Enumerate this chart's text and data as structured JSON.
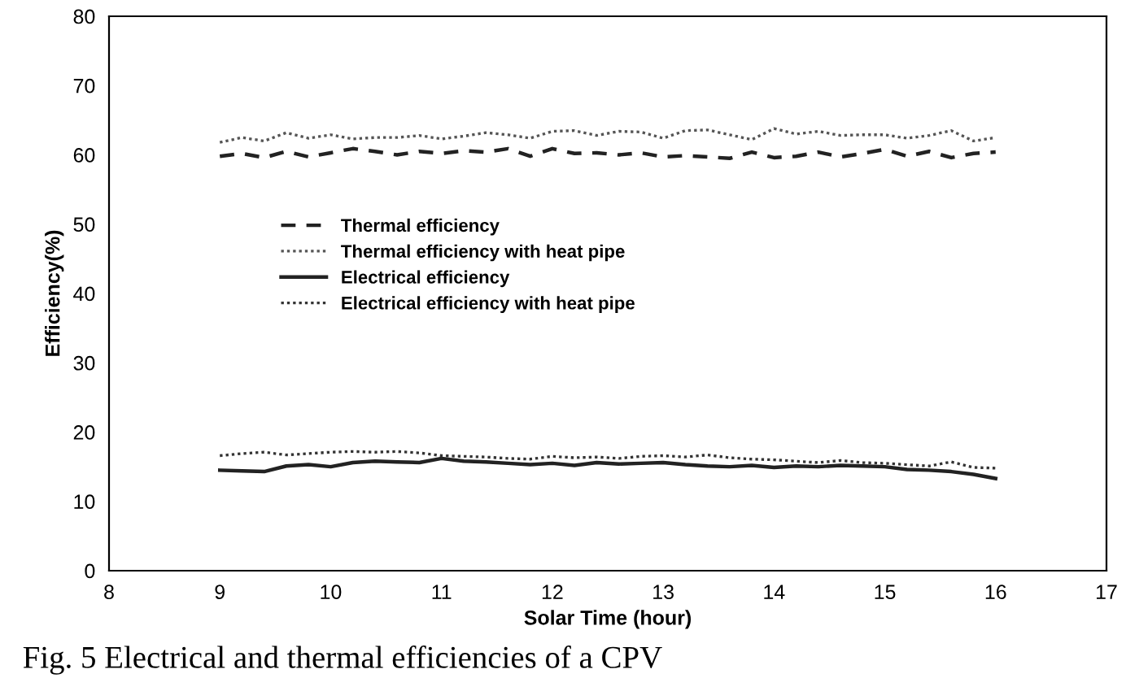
{
  "chart_data": {
    "type": "line",
    "xlabel": "Solar Time (hour)",
    "ylabel": "Efficiency(%)",
    "annotations": [
      "Fig. 5 Electrical and thermal efficiencies of a CPV"
    ],
    "x": [
      9,
      9.2,
      9.4,
      9.6,
      9.8,
      10,
      10.2,
      10.4,
      10.6,
      10.8,
      11,
      11.2,
      11.4,
      11.6,
      11.8,
      12,
      12.2,
      12.4,
      12.6,
      12.8,
      13,
      13.2,
      13.4,
      13.6,
      13.8,
      14,
      14.2,
      14.4,
      14.6,
      14.8,
      15,
      15.2,
      15.4,
      15.6,
      15.8,
      16
    ],
    "xlim": [
      8,
      17
    ],
    "xticks": [
      8,
      9,
      10,
      11,
      12,
      13,
      14,
      15,
      16,
      17
    ],
    "ylim": [
      0,
      80
    ],
    "yticks": [
      0,
      10,
      20,
      30,
      40,
      50,
      60,
      70,
      80
    ],
    "grid": false,
    "legend": "center",
    "series": [
      {
        "name": "Thermal efficiency",
        "color": "#222222",
        "line_style": "dashed",
        "values": [
          59.8,
          60.2,
          59.6,
          60.5,
          59.7,
          60.3,
          60.9,
          60.5,
          60.0,
          60.5,
          60.2,
          60.6,
          60.4,
          60.9,
          59.8,
          60.9,
          60.2,
          60.3,
          60.0,
          60.3,
          59.7,
          59.9,
          59.7,
          59.5,
          60.4,
          59.6,
          59.8,
          60.4,
          59.7,
          60.2,
          60.8,
          59.8,
          60.5,
          59.6,
          60.2,
          60.4
        ]
      },
      {
        "name": "Thermal efficiency with heat pipe",
        "color": "#555555",
        "line_style": "dotted",
        "values": [
          61.8,
          62.5,
          62.0,
          63.2,
          62.4,
          62.9,
          62.3,
          62.5,
          62.5,
          62.8,
          62.3,
          62.7,
          63.2,
          62.9,
          62.4,
          63.4,
          63.5,
          62.8,
          63.4,
          63.3,
          62.4,
          63.5,
          63.6,
          62.9,
          62.2,
          63.8,
          63.0,
          63.4,
          62.8,
          62.9,
          62.9,
          62.4,
          62.8,
          63.5,
          62.0,
          62.5
        ]
      },
      {
        "name": "Electrical efficiency",
        "color": "#222222",
        "line_style": "solid",
        "values": [
          14.5,
          14.4,
          14.3,
          15.1,
          15.3,
          15.0,
          15.6,
          15.8,
          15.7,
          15.6,
          16.2,
          15.8,
          15.7,
          15.5,
          15.3,
          15.5,
          15.2,
          15.6,
          15.4,
          15.5,
          15.6,
          15.3,
          15.1,
          15.0,
          15.2,
          14.9,
          15.1,
          15.0,
          15.2,
          15.1,
          15.0,
          14.6,
          14.5,
          14.3,
          13.9,
          13.3
        ]
      },
      {
        "name": "Electrical efficiency with heat pipe",
        "color": "#333333",
        "line_style": "dotted",
        "values": [
          16.6,
          16.9,
          17.1,
          16.7,
          16.9,
          17.1,
          17.2,
          17.1,
          17.2,
          17.0,
          16.6,
          16.5,
          16.4,
          16.2,
          16.1,
          16.5,
          16.3,
          16.4,
          16.2,
          16.5,
          16.6,
          16.4,
          16.7,
          16.3,
          16.1,
          16.0,
          15.8,
          15.6,
          15.9,
          15.6,
          15.5,
          15.3,
          15.1,
          15.7,
          14.9,
          14.8
        ]
      }
    ]
  }
}
